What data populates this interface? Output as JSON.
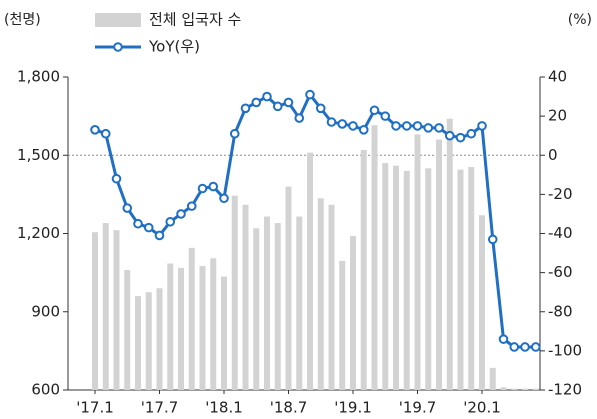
{
  "chart_data": {
    "type": "bar_line",
    "y_unit_label": "(천명)",
    "y2_unit_label": "(%)",
    "categories": [
      "'17.1",
      null,
      null,
      null,
      null,
      null,
      "'17.7",
      null,
      null,
      null,
      null,
      null,
      "'18.1",
      null,
      null,
      null,
      null,
      null,
      "'18.7",
      null,
      null,
      null,
      null,
      null,
      "'19.1",
      null,
      null,
      null,
      null,
      null,
      "'19.7",
      null,
      null,
      null,
      null,
      null,
      "'20.1",
      null,
      null,
      null,
      null,
      null
    ],
    "series": [
      {
        "name": "전체 입국자 수",
        "type": "bar",
        "color": "#d3d3d3",
        "axis": "y",
        "values": [
          1205,
          1240,
          1213,
          1060,
          960,
          975,
          990,
          1085,
          1068,
          1145,
          1075,
          1105,
          1035,
          1345,
          1310,
          1220,
          1265,
          1240,
          1380,
          1265,
          1510,
          1335,
          1310,
          1095,
          1190,
          1520,
          1615,
          1470,
          1460,
          1440,
          1580,
          1450,
          1560,
          1640,
          1445,
          1455,
          1270,
          685,
          610,
          605,
          605,
          605
        ]
      },
      {
        "name": "YoY(우)",
        "type": "line",
        "color": "#1f6fc5",
        "axis": "y2",
        "values": [
          13,
          11,
          -12,
          -27,
          -35,
          -37,
          -41,
          -34,
          -30,
          -26,
          -17,
          -16,
          -22,
          11,
          24,
          27,
          30,
          25,
          27,
          19,
          31,
          24,
          17,
          16,
          15,
          13,
          23,
          20,
          15,
          15,
          15,
          14,
          14,
          10,
          9,
          11,
          15,
          -43,
          -94,
          -98,
          -98,
          -98
        ]
      }
    ],
    "ylim": [
      600,
      1800
    ],
    "yticks": [
      {
        "value": 600,
        "label": "600"
      },
      {
        "value": 900,
        "label": "900"
      },
      {
        "value": 1200,
        "label": "1,200"
      },
      {
        "value": 1500,
        "label": "1,500"
      },
      {
        "value": 1800,
        "label": "1,800"
      }
    ],
    "y2lim": [
      -120,
      40
    ],
    "y2ticks": [
      -120,
      -100,
      -80,
      -60,
      -40,
      -20,
      0,
      20,
      40
    ],
    "y2_refline": 0
  }
}
